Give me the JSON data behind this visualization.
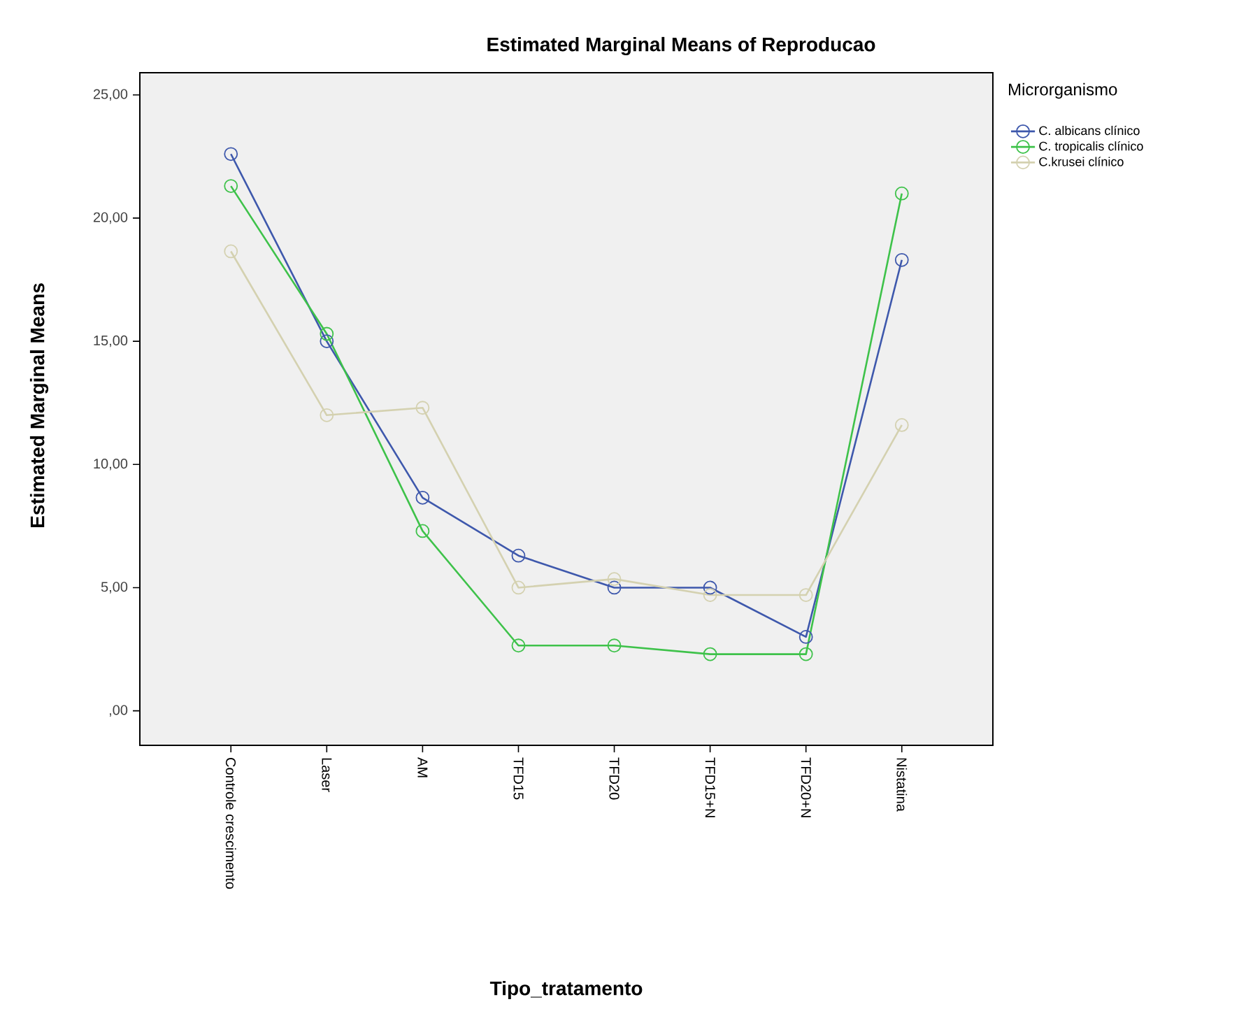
{
  "chart_data": {
    "type": "line",
    "title": "Estimated Marginal Means of Reproducao",
    "xlabel": "Tipo_tratamento",
    "ylabel": "Estimated Marginal Means",
    "legend_title": "Microrganismo",
    "categories": [
      "Controle crescimento",
      "Laser",
      "AM",
      "TFD15",
      "TFD20",
      "TFD15+N",
      "TFD20+N",
      "Nistatina"
    ],
    "series": [
      {
        "name": "C. albicans clínico",
        "color": "#3e58ac",
        "values": [
          22.6,
          15.0,
          8.65,
          6.3,
          5.0,
          5.0,
          3.0,
          18.3
        ]
      },
      {
        "name": "C. tropicalis clínico",
        "color": "#3ec24a",
        "values": [
          21.3,
          15.3,
          7.3,
          2.65,
          2.65,
          2.3,
          2.3,
          21.0
        ]
      },
      {
        "name": "C.krusei clínico",
        "color": "#d4d1b0",
        "values": [
          18.65,
          12.0,
          12.3,
          5.0,
          5.35,
          4.7,
          4.7,
          11.6
        ]
      }
    ],
    "ylim": [
      -1.4,
      25.9
    ],
    "yticks": [
      {
        "value": 0,
        "label": ",00"
      },
      {
        "value": 5,
        "label": "5,00"
      },
      {
        "value": 10,
        "label": "10,00"
      },
      {
        "value": 15,
        "label": "15,00"
      },
      {
        "value": 20,
        "label": "20,00"
      },
      {
        "value": 25,
        "label": "25,00"
      }
    ],
    "marker": "circle",
    "grid": false,
    "legend": "right"
  }
}
